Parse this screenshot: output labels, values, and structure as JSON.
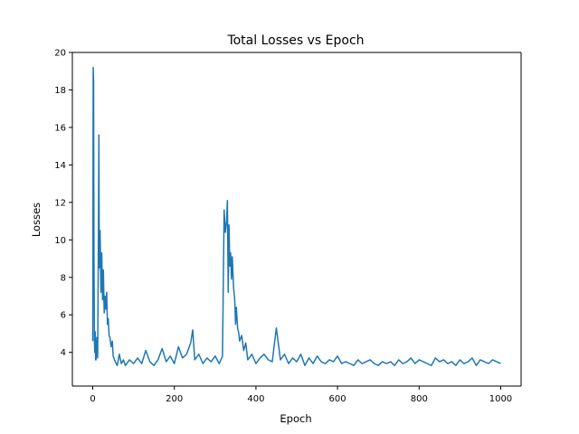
{
  "chart_data": {
    "type": "line",
    "title": "Total Losses vs Epoch",
    "xlabel": "Epoch",
    "ylabel": "Losses",
    "xlim": [
      -50,
      1050
    ],
    "ylim": [
      2.2,
      20
    ],
    "xticks": [
      0,
      200,
      400,
      600,
      800,
      1000
    ],
    "yticks": [
      4,
      6,
      8,
      10,
      12,
      14,
      16,
      18,
      20
    ],
    "grid": false,
    "legend": "none",
    "series": [
      {
        "color": "#1f77b4",
        "x": [
          0,
          1,
          2,
          3,
          4,
          5,
          6,
          7,
          8,
          10,
          12,
          14,
          15,
          16,
          18,
          20,
          22,
          24,
          26,
          28,
          30,
          32,
          34,
          36,
          38,
          40,
          42,
          45,
          48,
          50,
          55,
          60,
          65,
          70,
          75,
          80,
          90,
          100,
          110,
          120,
          130,
          140,
          150,
          160,
          170,
          180,
          190,
          200,
          210,
          220,
          230,
          240,
          245,
          250,
          260,
          270,
          280,
          290,
          300,
          310,
          318,
          322,
          325,
          328,
          330,
          332,
          334,
          336,
          338,
          340,
          342,
          345,
          348,
          350,
          352,
          355,
          358,
          360,
          365,
          370,
          375,
          380,
          390,
          400,
          410,
          420,
          430,
          440,
          450,
          460,
          470,
          480,
          490,
          500,
          510,
          520,
          530,
          540,
          550,
          560,
          570,
          580,
          590,
          600,
          610,
          620,
          630,
          640,
          650,
          660,
          670,
          680,
          690,
          700,
          710,
          720,
          730,
          740,
          750,
          760,
          770,
          780,
          790,
          800,
          810,
          820,
          830,
          840,
          850,
          860,
          870,
          880,
          890,
          900,
          910,
          920,
          930,
          940,
          950,
          960,
          970,
          980,
          990,
          1000
        ],
        "y": [
          4.6,
          19.2,
          18.5,
          9.0,
          4.6,
          4.0,
          5.1,
          3.6,
          3.6,
          4.8,
          3.7,
          11.0,
          15.6,
          8.5,
          10.5,
          7.2,
          9.3,
          6.8,
          8.4,
          6.1,
          7.0,
          6.3,
          7.2,
          5.5,
          5.8,
          4.9,
          4.8,
          4.3,
          4.6,
          3.8,
          3.5,
          3.3,
          3.9,
          3.4,
          3.6,
          3.3,
          3.6,
          3.4,
          3.7,
          3.4,
          4.1,
          3.5,
          3.3,
          3.6,
          4.2,
          3.5,
          3.8,
          3.4,
          4.3,
          3.7,
          3.9,
          4.5,
          5.2,
          3.6,
          3.9,
          3.4,
          3.7,
          3.5,
          3.8,
          3.4,
          3.8,
          11.6,
          10.4,
          11.0,
          12.1,
          7.2,
          10.8,
          8.6,
          9.3,
          7.9,
          9.1,
          7.5,
          6.8,
          5.5,
          6.4,
          5.3,
          5.0,
          4.6,
          4.9,
          4.1,
          4.5,
          3.6,
          3.9,
          3.4,
          3.7,
          3.9,
          3.6,
          3.5,
          5.3,
          3.6,
          3.9,
          3.4,
          3.7,
          3.5,
          3.9,
          3.3,
          3.7,
          3.4,
          3.8,
          3.5,
          3.4,
          3.6,
          3.5,
          3.8,
          3.4,
          3.5,
          3.4,
          3.3,
          3.6,
          3.4,
          3.5,
          3.6,
          3.4,
          3.3,
          3.5,
          3.4,
          3.5,
          3.3,
          3.6,
          3.4,
          3.5,
          3.7,
          3.4,
          3.6,
          3.5,
          3.4,
          3.3,
          3.7,
          3.5,
          3.6,
          3.4,
          3.5,
          3.3,
          3.6,
          3.4,
          3.5,
          3.7,
          3.3,
          3.6,
          3.5,
          3.4,
          3.6,
          3.5,
          3.4
        ]
      }
    ]
  }
}
